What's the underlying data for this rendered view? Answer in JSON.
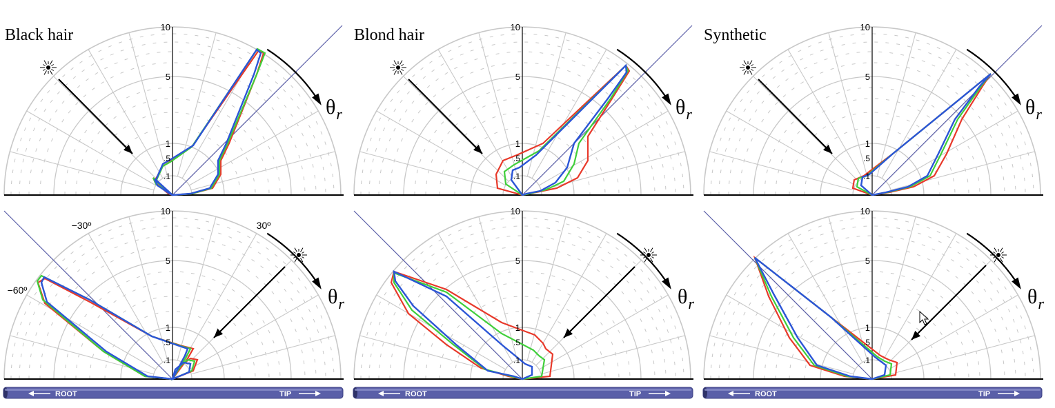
{
  "columns": [
    {
      "title": "Black hair"
    },
    {
      "title": "Blond hair"
    },
    {
      "title": "Synthetic"
    }
  ],
  "radial_tick_labels": [
    "10",
    "5",
    "1",
    ".5",
    ".1"
  ],
  "angle_labels": [
    "−30º",
    "30º",
    "−60º"
  ],
  "theta_symbol": "θ",
  "theta_subscript": "r",
  "fiber_bar": {
    "root_label": "ROOT",
    "tip_label": "TIP"
  },
  "icons": {
    "light_source": "light-source-icon",
    "incident_arrow": "incident-arrow-icon",
    "rotation_arrow": "rotation-arrow-icon",
    "cursor": "mouse-pointer-icon"
  },
  "colors": {
    "red": "#e8392a",
    "green": "#3fcf3a",
    "blue": "#2b55d6",
    "reference_line": "#5b5fa8",
    "grid": "#c8c8c8",
    "bar": "#5a5fa8"
  }
}
